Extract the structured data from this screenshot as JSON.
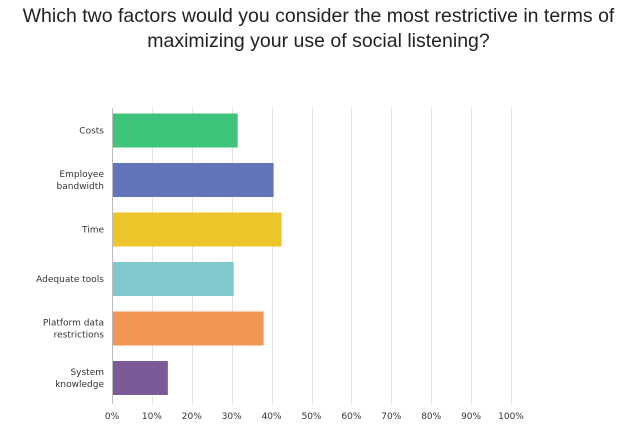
{
  "chart_data": {
    "type": "bar",
    "orientation": "horizontal",
    "title_lines": [
      "Which two factors would you consider the most restrictive in terms of",
      "maximizing your use of social listening?"
    ],
    "categories": [
      [
        "Costs"
      ],
      [
        "Employee",
        "bandwidth"
      ],
      [
        "Time"
      ],
      [
        "Adequate tools"
      ],
      [
        "Platform data",
        "restrictions"
      ],
      [
        "System",
        "knowledge"
      ]
    ],
    "values": [
      31.5,
      40.5,
      42.5,
      30.5,
      38.0,
      14.0
    ],
    "colors": [
      "#3dc47a",
      "#6275bc",
      "#ecc52a",
      "#7fc8ce",
      "#f29655",
      "#7b5a98"
    ],
    "xlim": [
      0,
      100
    ],
    "xticks": [
      "0%",
      "10%",
      "20%",
      "30%",
      "40%",
      "50%",
      "60%",
      "70%",
      "80%",
      "90%",
      "100%"
    ],
    "grid": true,
    "xlabel": "",
    "ylabel": ""
  }
}
